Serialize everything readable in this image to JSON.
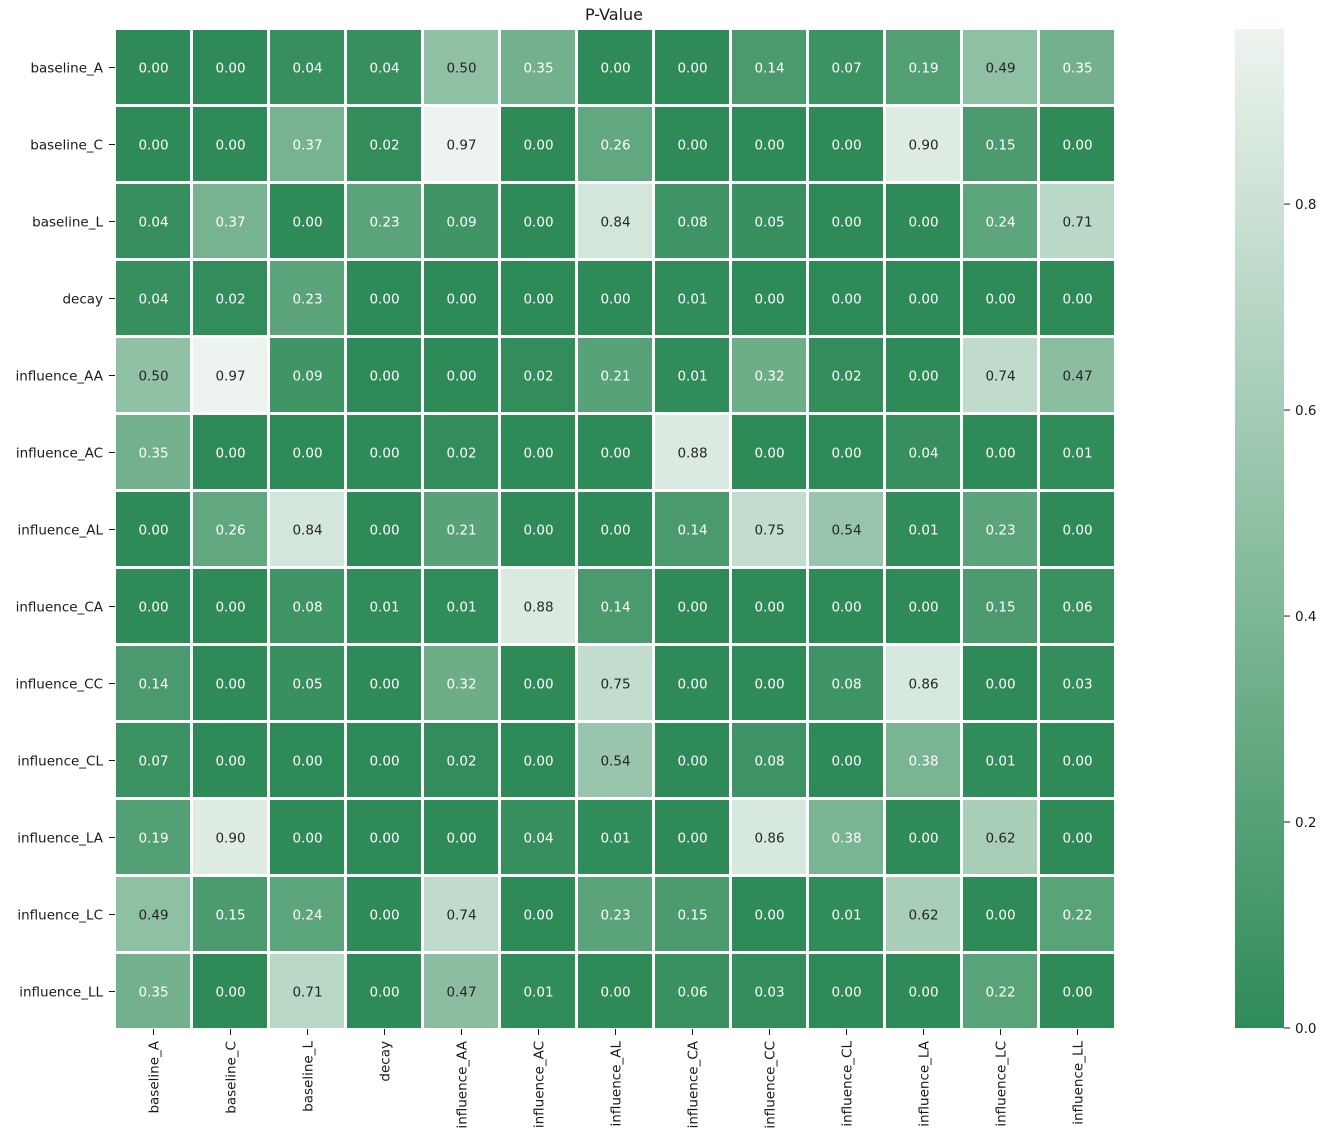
{
  "chart_data": {
    "type": "heatmap",
    "title": "P-Value",
    "rows": [
      "baseline_A",
      "baseline_C",
      "baseline_L",
      "decay",
      "influence_AA",
      "influence_AC",
      "influence_AL",
      "influence_CA",
      "influence_CC",
      "influence_CL",
      "influence_LA",
      "influence_LC",
      "influence_LL"
    ],
    "columns": [
      "baseline_A",
      "baseline_C",
      "baseline_L",
      "decay",
      "influence_AA",
      "influence_AC",
      "influence_AL",
      "influence_CA",
      "influence_CC",
      "influence_CL",
      "influence_LA",
      "influence_LC",
      "influence_LL"
    ],
    "values": [
      [
        0.0,
        0.0,
        0.04,
        0.04,
        0.5,
        0.35,
        0.0,
        0.0,
        0.14,
        0.07,
        0.19,
        0.49,
        0.35
      ],
      [
        0.0,
        0.0,
        0.37,
        0.02,
        0.97,
        0.0,
        0.26,
        0.0,
        0.0,
        0.0,
        0.9,
        0.15,
        0.0
      ],
      [
        0.04,
        0.37,
        0.0,
        0.23,
        0.09,
        0.0,
        0.84,
        0.08,
        0.05,
        0.0,
        0.0,
        0.24,
        0.71
      ],
      [
        0.04,
        0.02,
        0.23,
        0.0,
        0.0,
        0.0,
        0.0,
        0.01,
        0.0,
        0.0,
        0.0,
        0.0,
        0.0
      ],
      [
        0.5,
        0.97,
        0.09,
        0.0,
        0.0,
        0.02,
        0.21,
        0.01,
        0.32,
        0.02,
        0.0,
        0.74,
        0.47
      ],
      [
        0.35,
        0.0,
        0.0,
        0.0,
        0.02,
        0.0,
        0.0,
        0.88,
        0.0,
        0.0,
        0.04,
        0.0,
        0.01
      ],
      [
        0.0,
        0.26,
        0.84,
        0.0,
        0.21,
        0.0,
        0.0,
        0.14,
        0.75,
        0.54,
        0.01,
        0.23,
        0.0
      ],
      [
        0.0,
        0.0,
        0.08,
        0.01,
        0.01,
        0.88,
        0.14,
        0.0,
        0.0,
        0.0,
        0.0,
        0.15,
        0.06
      ],
      [
        0.14,
        0.0,
        0.05,
        0.0,
        0.32,
        0.0,
        0.75,
        0.0,
        0.0,
        0.08,
        0.86,
        0.0,
        0.03
      ],
      [
        0.07,
        0.0,
        0.0,
        0.0,
        0.02,
        0.0,
        0.54,
        0.0,
        0.08,
        0.0,
        0.38,
        0.01,
        0.0
      ],
      [
        0.19,
        0.9,
        0.0,
        0.0,
        0.0,
        0.04,
        0.01,
        0.0,
        0.86,
        0.38,
        0.0,
        0.62,
        0.0
      ],
      [
        0.49,
        0.15,
        0.24,
        0.0,
        0.74,
        0.0,
        0.23,
        0.15,
        0.0,
        0.01,
        0.62,
        0.0,
        0.22
      ],
      [
        0.35,
        0.0,
        0.71,
        0.0,
        0.47,
        0.01,
        0.0,
        0.06,
        0.03,
        0.0,
        0.0,
        0.22,
        0.0
      ]
    ],
    "value_format": "0.00",
    "colorbar": {
      "range": [
        0.0,
        0.97
      ],
      "ticks": [
        "0.0",
        "0.2",
        "0.4",
        "0.6",
        "0.8"
      ],
      "color_low": "#2e8b57",
      "color_high": "#edf4ef"
    },
    "text_color_dark_bg": "#ffffff",
    "text_color_light_bg": "#262626",
    "grid_line_color": "#ffffff",
    "legend_placement": "right"
  }
}
